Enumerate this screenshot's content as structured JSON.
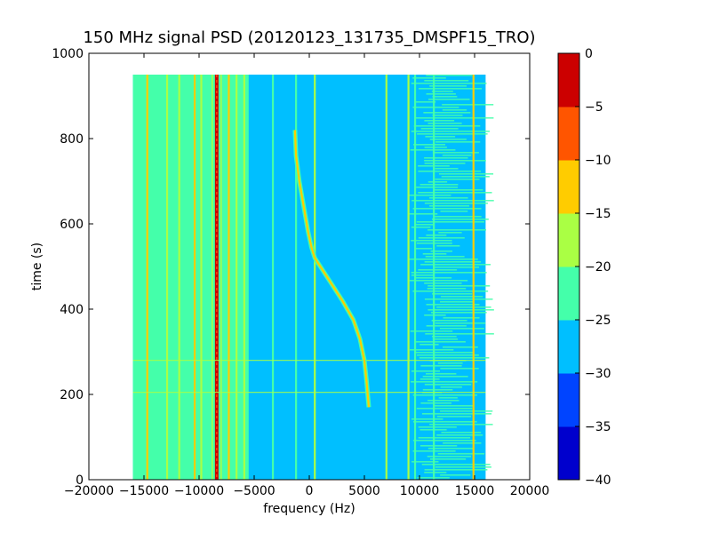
{
  "chart_data": {
    "type": "heatmap",
    "title": "150 MHz signal PSD (20120123_131735_DMSPF15_TRO)",
    "xlabel": "frequency (Hz)",
    "ylabel": "time (s)",
    "xlim": [
      -20000,
      20000
    ],
    "ylim": [
      0,
      1000
    ],
    "xticks": [
      -20000,
      -15000,
      -10000,
      -5000,
      0,
      5000,
      10000,
      15000,
      20000
    ],
    "xtick_labels": [
      "−20000",
      "−15000",
      "−10000",
      "−5000",
      "0",
      "5000",
      "10000",
      "15000",
      "20000"
    ],
    "yticks": [
      0,
      200,
      400,
      600,
      800,
      1000
    ],
    "ytick_labels": [
      "0",
      "200",
      "400",
      "600",
      "800",
      "1000"
    ],
    "data_extent": {
      "x": [
        -16000,
        16000
      ],
      "y": [
        0,
        950
      ]
    },
    "colormap": "jet",
    "colorbar": {
      "range": [
        -40,
        0
      ],
      "levels": [
        -40,
        -35,
        -30,
        -25,
        -20,
        -15,
        -10,
        -5,
        0
      ],
      "tick_labels": [
        "−40",
        "−35",
        "−30",
        "−25",
        "−20",
        "−15",
        "−10",
        "−5",
        "0"
      ],
      "colors": [
        "#0000cd",
        "#0044ff",
        "#00bfff",
        "#44ffaa",
        "#aaff44",
        "#ffcc00",
        "#ff5500",
        "#cc0000"
      ]
    },
    "background_level": -27,
    "left_region": {
      "x": [
        -16000,
        -5500
      ],
      "level": -22
    },
    "right_noisy_region": {
      "x": [
        9000,
        16000
      ],
      "level": -25
    },
    "vertical_lines": [
      {
        "x": -14700,
        "level": -13,
        "y": [
          0,
          950
        ]
      },
      {
        "x": -12900,
        "level": -18,
        "y": [
          0,
          950
        ]
      },
      {
        "x": -11800,
        "level": -17,
        "y": [
          0,
          950
        ]
      },
      {
        "x": -10400,
        "level": -12,
        "y": [
          0,
          950
        ]
      },
      {
        "x": -9800,
        "level": -16,
        "y": [
          0,
          950
        ]
      },
      {
        "x": -8400,
        "level": -3,
        "y": [
          0,
          950
        ]
      },
      {
        "x": -7300,
        "level": -15,
        "y": [
          0,
          950
        ]
      },
      {
        "x": -6600,
        "level": -17,
        "y": [
          0,
          950
        ]
      },
      {
        "x": -5900,
        "level": -19,
        "y": [
          0,
          950
        ]
      },
      {
        "x": -3300,
        "level": -21,
        "y": [
          0,
          950
        ]
      },
      {
        "x": -1200,
        "level": -22,
        "y": [
          0,
          950
        ]
      },
      {
        "x": 500,
        "level": -17,
        "y": [
          0,
          950
        ]
      },
      {
        "x": 7000,
        "level": -20,
        "y": [
          0,
          950
        ]
      },
      {
        "x": 9000,
        "level": -18,
        "y": [
          0,
          950
        ]
      },
      {
        "x": 9600,
        "level": -21,
        "y": [
          0,
          950
        ]
      },
      {
        "x": 11300,
        "level": -22,
        "y": [
          0,
          950
        ]
      },
      {
        "x": 14900,
        "level": -13,
        "y": [
          0,
          950
        ]
      }
    ],
    "horizontal_lines": [
      {
        "y": 280,
        "level": -20
      },
      {
        "y": 205,
        "level": -20
      }
    ],
    "doppler_curve": {
      "level": -15,
      "points": [
        {
          "x": -1300,
          "y": 820
        },
        {
          "x": -1200,
          "y": 760
        },
        {
          "x": -900,
          "y": 700
        },
        {
          "x": -500,
          "y": 640
        },
        {
          "x": -100,
          "y": 580
        },
        {
          "x": 200,
          "y": 545
        },
        {
          "x": 500,
          "y": 520
        },
        {
          "x": 1000,
          "y": 500
        },
        {
          "x": 2000,
          "y": 460
        },
        {
          "x": 3000,
          "y": 420
        },
        {
          "x": 4000,
          "y": 375
        },
        {
          "x": 4600,
          "y": 330
        },
        {
          "x": 5000,
          "y": 280
        },
        {
          "x": 5200,
          "y": 230
        },
        {
          "x": 5400,
          "y": 170
        }
      ]
    }
  }
}
